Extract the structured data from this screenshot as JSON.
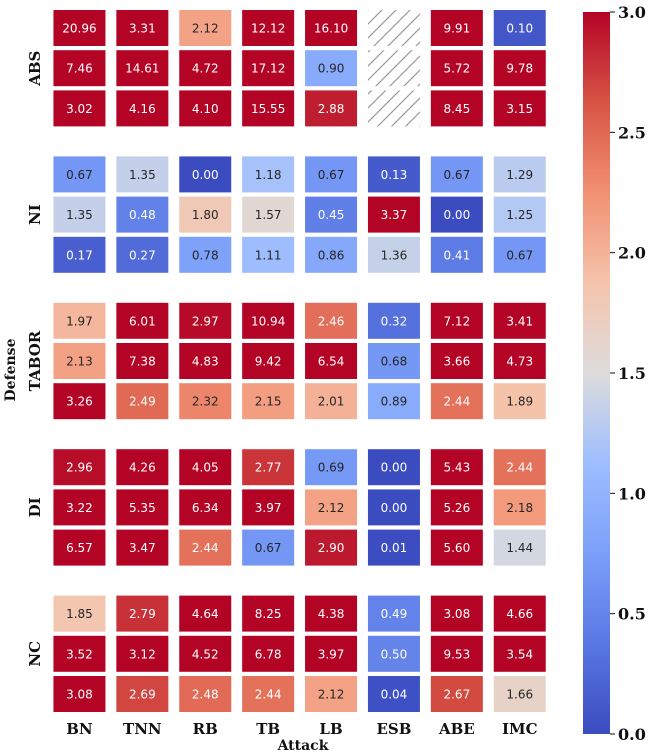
{
  "chart_data": {
    "type": "heatmap",
    "xlabel": "Attack",
    "ylabel": "Defense",
    "x_categories": [
      "BN",
      "TNN",
      "RB",
      "TB",
      "LB",
      "ESB",
      "ABE",
      "IMC"
    ],
    "groups": [
      {
        "name": "ABS",
        "rows": [
          [
            "20.96",
            "3.31",
            "2.12",
            "12.12",
            "16.10",
            null,
            "9.91",
            "0.10"
          ],
          [
            "7.46",
            "14.61",
            "4.72",
            "17.12",
            "0.90",
            null,
            "5.72",
            "9.78"
          ],
          [
            "3.02",
            "4.16",
            "4.10",
            "15.55",
            "2.88",
            null,
            "8.45",
            "3.15"
          ]
        ]
      },
      {
        "name": "NI",
        "rows": [
          [
            "0.67",
            "1.35",
            "0.00",
            "1.18",
            "0.67",
            "0.13",
            "0.67",
            "1.29"
          ],
          [
            "1.35",
            "0.48",
            "1.80",
            "1.57",
            "0.45",
            "3.37",
            "0.00",
            "1.25"
          ],
          [
            "0.17",
            "0.27",
            "0.78",
            "1.11",
            "0.86",
            "1.36",
            "0.41",
            "0.67"
          ]
        ]
      },
      {
        "name": "TABOR",
        "rows": [
          [
            "1.97",
            "6.01",
            "2.97",
            "10.94",
            "2.46",
            "0.32",
            "7.12",
            "3.41"
          ],
          [
            "2.13",
            "7.38",
            "4.83",
            "9.42",
            "6.54",
            "0.68",
            "3.66",
            "4.73"
          ],
          [
            "3.26",
            "2.49",
            "2.32",
            "2.15",
            "2.01",
            "0.89",
            "2.44",
            "1.89"
          ]
        ]
      },
      {
        "name": "DI",
        "rows": [
          [
            "2.96",
            "4.26",
            "4.05",
            "2.77",
            "0.69",
            "0.00",
            "5.43",
            "2.44"
          ],
          [
            "3.22",
            "5.35",
            "6.34",
            "3.97",
            "2.12",
            "0.00",
            "5.26",
            "2.18"
          ],
          [
            "6.57",
            "3.47",
            "2.44",
            "0.67",
            "2.90",
            "0.01",
            "5.60",
            "1.44"
          ]
        ]
      },
      {
        "name": "NC",
        "rows": [
          [
            "1.85",
            "2.79",
            "4.64",
            "8.25",
            "4.38",
            "0.49",
            "3.08",
            "4.66"
          ],
          [
            "3.52",
            "3.12",
            "4.52",
            "6.78",
            "3.97",
            "0.50",
            "9.53",
            "3.54"
          ],
          [
            "3.08",
            "2.69",
            "2.48",
            "2.44",
            "2.12",
            "0.04",
            "2.67",
            "1.66"
          ]
        ]
      }
    ],
    "colorbar": {
      "colormap": "coolwarm",
      "range": [
        0,
        3
      ],
      "ticks": [
        "0.0",
        "0.5",
        "1.0",
        "1.5",
        "2.0",
        "2.5",
        "3.0"
      ]
    },
    "missing_pattern": "diagonal-hatch"
  }
}
